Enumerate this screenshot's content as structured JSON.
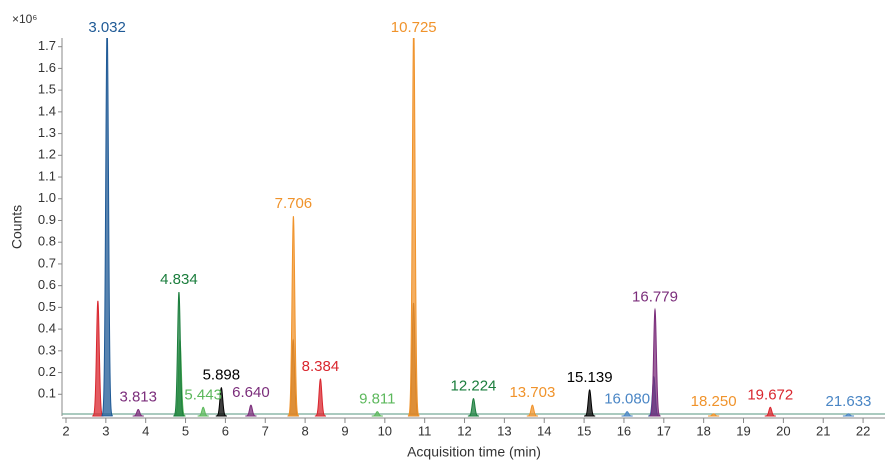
{
  "chart_data": {
    "type": "chromatogram",
    "y_multiplier": "×10⁶",
    "y_label": "Counts",
    "x_label": "Acquisition time (min)",
    "xlim": [
      1.9,
      22.55
    ],
    "xticks": [
      2,
      3,
      4,
      5,
      6,
      7,
      8,
      9,
      10,
      11,
      12,
      13,
      14,
      15,
      16,
      17,
      18,
      19,
      20,
      21,
      22
    ],
    "ylim": [
      0,
      1.74
    ],
    "yticks": [
      0.1,
      0.2,
      0.3,
      0.4,
      0.5,
      0.6,
      0.7,
      0.8,
      0.9,
      {
        "value": 1,
        "label": "1.0"
      },
      1.1,
      1.2,
      1.3,
      1.4,
      1.5,
      1.6,
      1.7
    ],
    "peaks": [
      {
        "x": 3.032,
        "height": 1.8,
        "color": "#1f5a96"
      },
      {
        "x": 3.813,
        "height": 0.03,
        "color": "#7b2d7b"
      },
      {
        "x": 4.834,
        "height": 0.57,
        "color": "#1a7d3c"
      },
      {
        "x": 5.443,
        "height": 0.04,
        "color": "#5cb85c"
      },
      {
        "x": 5.898,
        "height": 0.13,
        "color": "#000000"
      },
      {
        "x": {
          "value": 6.64,
          "label": "6.640"
        },
        "height": 0.05,
        "color": "#7b2d7b"
      },
      {
        "x": 7.706,
        "height": 0.92,
        "color": "#f0932b"
      },
      {
        "x": 8.384,
        "height": 0.17,
        "color": "#d9262e"
      },
      {
        "x": 9.811,
        "height": 0.02,
        "color": "#5cb85c"
      },
      {
        "x": 10.725,
        "height": 1.8,
        "color": "#f0932b"
      },
      {
        "x": 12.224,
        "height": 0.08,
        "color": "#1a7d3c"
      },
      {
        "x": 13.703,
        "height": 0.05,
        "color": "#f0932b"
      },
      {
        "x": 15.139,
        "height": 0.12,
        "color": "#000000"
      },
      {
        "x": {
          "value": 16.08,
          "label": "16.080"
        },
        "height": 0.02,
        "color": "#4a86c5"
      },
      {
        "x": 16.779,
        "height": 0.49,
        "color": "#7b2d7b"
      },
      {
        "x": {
          "value": 18.25,
          "label": "18.250"
        },
        "height": 0.01,
        "color": "#f0932b"
      },
      {
        "x": 19.672,
        "height": 0.04,
        "color": "#d9262e"
      },
      {
        "x": 21.633,
        "height": 0.01,
        "color": "#4a86c5"
      }
    ],
    "other_peaks": [
      {
        "x": 2.8,
        "height": 0.53,
        "color": "#d9262e"
      },
      {
        "x": 4.86,
        "height": 0.35,
        "color": "#5cb85c"
      },
      {
        "x": 7.7,
        "height": 0.35,
        "color": "#8b5a2b"
      },
      {
        "x": 10.72,
        "height": 0.52,
        "color": "#8b5a2b"
      },
      {
        "x": 16.75,
        "height": 0.18,
        "color": "#1f5a96"
      }
    ]
  }
}
